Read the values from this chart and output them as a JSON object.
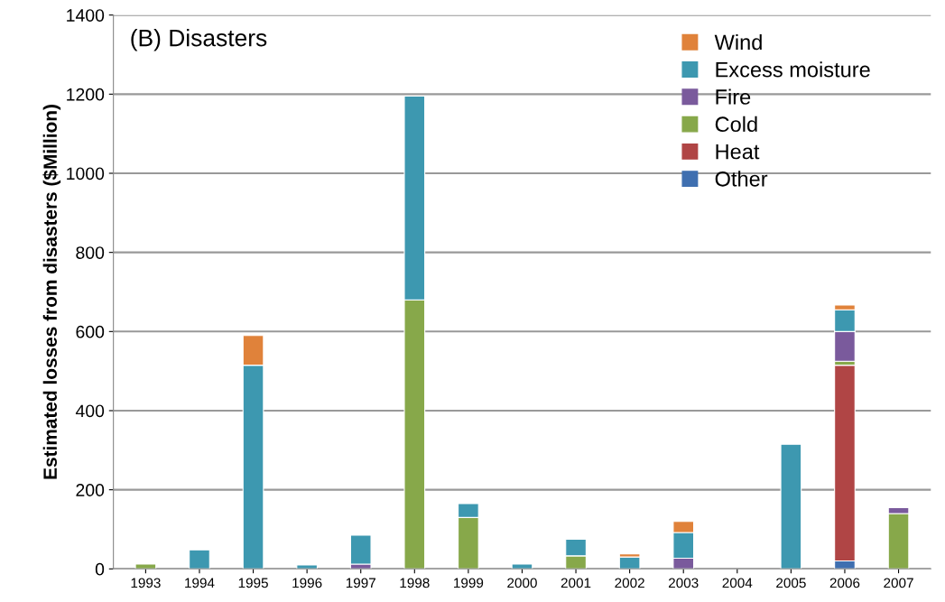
{
  "chart_data": {
    "type": "bar",
    "stacked": true,
    "title": "(B) Disasters",
    "ylabel": "Estimated losses from disasters ($Million)",
    "categories": [
      "1993",
      "1994",
      "1995",
      "1996",
      "1997",
      "1998",
      "1999",
      "2000",
      "2001",
      "2002",
      "2003",
      "2004",
      "2005",
      "2006",
      "2007"
    ],
    "series": [
      {
        "name": "Other",
        "color": "#3f6fb0",
        "values": [
          0,
          0,
          0,
          0,
          0,
          0,
          0,
          0,
          0,
          0,
          0,
          0,
          0,
          20,
          0
        ]
      },
      {
        "name": "Heat",
        "color": "#b04545",
        "values": [
          0,
          0,
          0,
          0,
          0,
          0,
          0,
          0,
          0,
          0,
          0,
          0,
          0,
          495,
          0
        ]
      },
      {
        "name": "Cold",
        "color": "#87a84a",
        "values": [
          12,
          0,
          0,
          0,
          0,
          680,
          130,
          0,
          33,
          0,
          0,
          0,
          0,
          10,
          140
        ]
      },
      {
        "name": "Fire",
        "color": "#7a5a9c",
        "values": [
          0,
          0,
          0,
          0,
          12,
          0,
          0,
          0,
          0,
          0,
          27,
          0,
          0,
          75,
          15
        ]
      },
      {
        "name": "Excess moisture",
        "color": "#3d98b0",
        "values": [
          0,
          48,
          515,
          10,
          73,
          515,
          35,
          12,
          42,
          30,
          65,
          0,
          315,
          55,
          0
        ]
      },
      {
        "name": "Wind",
        "color": "#e0823a",
        "values": [
          0,
          0,
          75,
          0,
          0,
          0,
          0,
          0,
          0,
          8,
          28,
          0,
          0,
          12,
          0
        ]
      }
    ],
    "ylim": [
      0,
      1400
    ],
    "yticks": [
      0,
      200,
      400,
      600,
      800,
      1000,
      1200,
      1400
    ],
    "grid": "y",
    "legend": "top right"
  }
}
